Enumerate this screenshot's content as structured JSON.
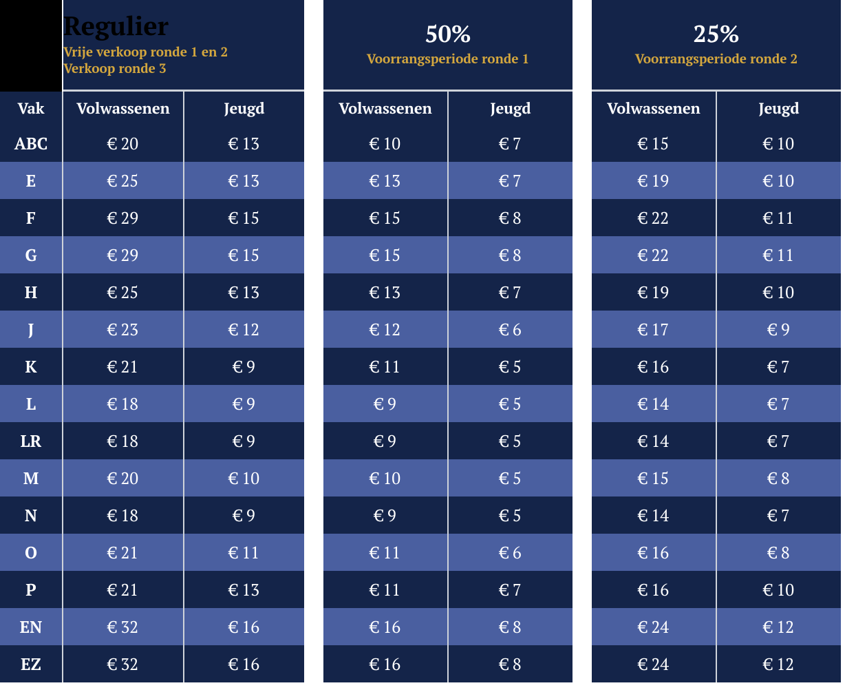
{
  "colors": {
    "dark": "#142449",
    "light": "#4a5fa0",
    "gold": "#d4a73e",
    "white": "#ffffff",
    "border": "#cfd3da",
    "corner": "#000000"
  },
  "headers": {
    "vak": "Vak",
    "volwassenen": "Volwassenen",
    "jeugd": "Jeugd"
  },
  "groups": [
    {
      "id": "regulier",
      "title": "Regulier",
      "subtitle_lines": [
        "Vrije verkoop ronde 1 en 2",
        "Verkoop ronde 3"
      ],
      "show_vak": true
    },
    {
      "id": "p50",
      "title": "50%",
      "subtitle_lines": [
        "Voorrangsperiode ronde 1"
      ],
      "show_vak": false
    },
    {
      "id": "p25",
      "title": "25%",
      "subtitle_lines": [
        "Voorrangsperiode ronde 2"
      ],
      "show_vak": false
    }
  ],
  "rows": [
    {
      "vak": "ABC",
      "regulier": {
        "v": "€ 20",
        "j": "€ 13"
      },
      "p50": {
        "v": "€ 10",
        "j": "€ 7"
      },
      "p25": {
        "v": "€ 15",
        "j": "€ 10"
      }
    },
    {
      "vak": "E",
      "regulier": {
        "v": "€ 25",
        "j": "€ 13"
      },
      "p50": {
        "v": "€ 13",
        "j": "€ 7"
      },
      "p25": {
        "v": "€ 19",
        "j": "€ 10"
      }
    },
    {
      "vak": "F",
      "regulier": {
        "v": "€ 29",
        "j": "€ 15"
      },
      "p50": {
        "v": "€ 15",
        "j": "€ 8"
      },
      "p25": {
        "v": "€ 22",
        "j": "€ 11"
      }
    },
    {
      "vak": "G",
      "regulier": {
        "v": "€ 29",
        "j": "€ 15"
      },
      "p50": {
        "v": "€ 15",
        "j": "€ 8"
      },
      "p25": {
        "v": "€ 22",
        "j": "€ 11"
      }
    },
    {
      "vak": "H",
      "regulier": {
        "v": "€ 25",
        "j": "€ 13"
      },
      "p50": {
        "v": "€ 13",
        "j": "€ 7"
      },
      "p25": {
        "v": "€ 19",
        "j": "€ 10"
      }
    },
    {
      "vak": "J",
      "regulier": {
        "v": "€ 23",
        "j": "€ 12"
      },
      "p50": {
        "v": "€ 12",
        "j": "€ 6"
      },
      "p25": {
        "v": "€ 17",
        "j": "€ 9"
      }
    },
    {
      "vak": "K",
      "regulier": {
        "v": "€ 21",
        "j": "€ 9"
      },
      "p50": {
        "v": "€ 11",
        "j": "€ 5"
      },
      "p25": {
        "v": "€ 16",
        "j": "€ 7"
      }
    },
    {
      "vak": "L",
      "regulier": {
        "v": "€ 18",
        "j": "€ 9"
      },
      "p50": {
        "v": "€ 9",
        "j": "€ 5"
      },
      "p25": {
        "v": "€ 14",
        "j": "€ 7"
      }
    },
    {
      "vak": "LR",
      "regulier": {
        "v": "€ 18",
        "j": "€ 9"
      },
      "p50": {
        "v": "€ 9",
        "j": "€ 5"
      },
      "p25": {
        "v": "€ 14",
        "j": "€ 7"
      }
    },
    {
      "vak": "M",
      "regulier": {
        "v": "€ 20",
        "j": "€ 10"
      },
      "p50": {
        "v": "€ 10",
        "j": "€ 5"
      },
      "p25": {
        "v": "€ 15",
        "j": "€ 8"
      }
    },
    {
      "vak": "N",
      "regulier": {
        "v": "€ 18",
        "j": "€ 9"
      },
      "p50": {
        "v": "€ 9",
        "j": "€ 5"
      },
      "p25": {
        "v": "€ 14",
        "j": "€ 7"
      }
    },
    {
      "vak": "O",
      "regulier": {
        "v": "€ 21",
        "j": "€ 11"
      },
      "p50": {
        "v": "€ 11",
        "j": "€ 6"
      },
      "p25": {
        "v": "€ 16",
        "j": "€ 8"
      }
    },
    {
      "vak": "P",
      "regulier": {
        "v": "€ 21",
        "j": "€ 13"
      },
      "p50": {
        "v": "€ 11",
        "j": "€ 7"
      },
      "p25": {
        "v": "€ 16",
        "j": "€ 10"
      }
    },
    {
      "vak": "EN",
      "regulier": {
        "v": "€ 32",
        "j": "€ 16"
      },
      "p50": {
        "v": "€ 16",
        "j": "€ 8"
      },
      "p25": {
        "v": "€ 24",
        "j": "€ 12"
      }
    },
    {
      "vak": "EZ",
      "regulier": {
        "v": "€ 32",
        "j": "€ 16"
      },
      "p50": {
        "v": "€ 16",
        "j": "€ 8"
      },
      "p25": {
        "v": "€ 24",
        "j": "€ 12"
      }
    }
  ]
}
